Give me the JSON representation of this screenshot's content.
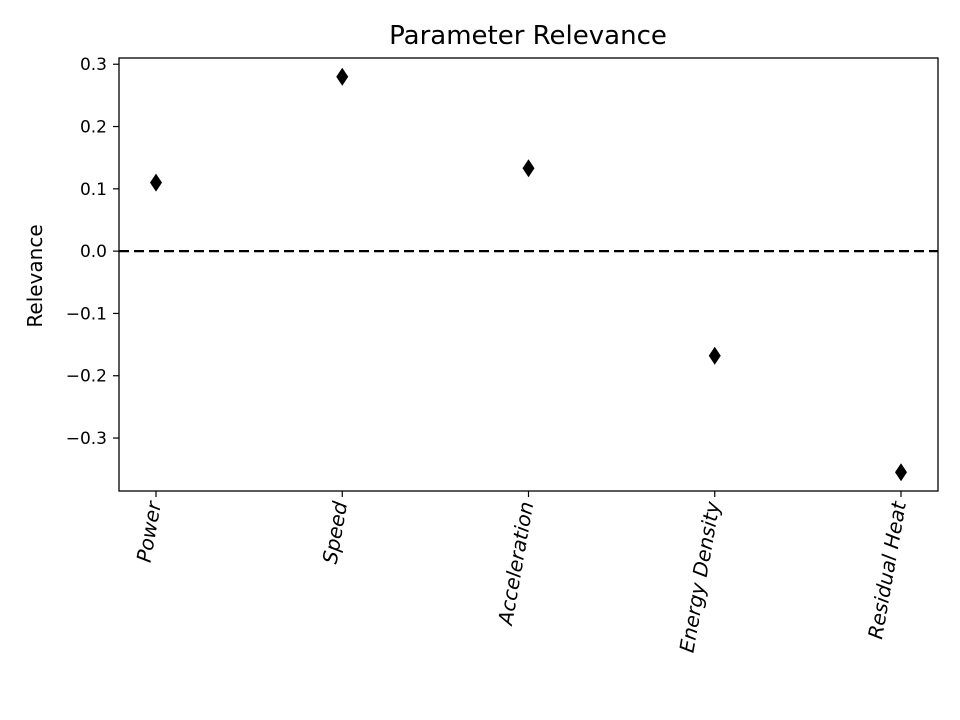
{
  "chart_data": {
    "type": "scatter",
    "title": "Parameter Relevance",
    "xlabel": "",
    "ylabel": "Relevance",
    "categories": [
      "Power",
      "Speed",
      "Acceleration",
      "Energy Density",
      "Residual Heat"
    ],
    "series": [
      {
        "values": [
          0.11,
          0.28,
          0.133,
          -0.168,
          -0.355
        ]
      }
    ],
    "yticks": [
      0.3,
      0.2,
      0.1,
      0.0,
      -0.1,
      -0.2,
      -0.3
    ],
    "ytick_labels": [
      "0.3",
      "0.2",
      "0.1",
      "0.0",
      "−0.1",
      "−0.2",
      "−0.3"
    ],
    "ylim": [
      -0.385,
      0.31
    ],
    "reference_line": {
      "y": 0,
      "style": "dashed"
    },
    "marker": "diamond",
    "marker_color": "#000000",
    "grid": false,
    "legend": false,
    "xtick_rotation_deg": -80
  }
}
